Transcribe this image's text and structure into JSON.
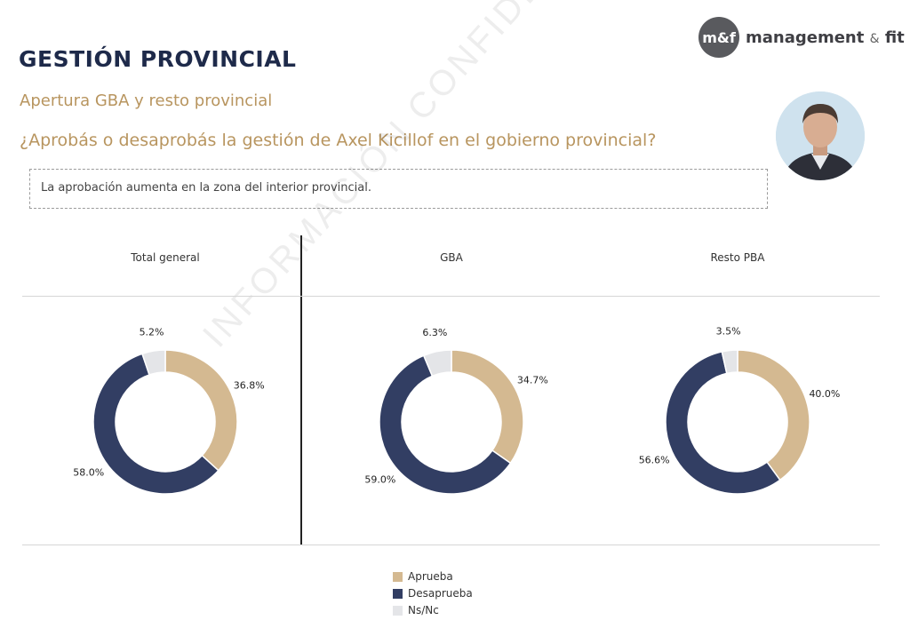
{
  "header": {
    "title": "GESTIÓN PROVINCIAL",
    "subtitle": "Apertura GBA y resto provincial",
    "question": "¿Aprobás o desaprobás la gestión de Axel Kicillof en el gobierno provincial?",
    "note": "La aprobación aumenta en la zona del interior provincial."
  },
  "logo": {
    "mark": "m&f",
    "name": "management",
    "amp": "&",
    "suffix": "fit"
  },
  "watermark": "INFORMACIÓN CONFIDENCIAL",
  "colors": {
    "aprueba": "#d4b991",
    "desaprueba": "#323e63",
    "nsnc": "#e4e5e8"
  },
  "chart_data": [
    {
      "type": "pie",
      "title": "Total general",
      "categories": [
        "Aprueba",
        "Desaprueba",
        "Ns/Nc"
      ],
      "values": [
        36.8,
        58.0,
        5.2
      ],
      "labels": [
        "36.8%",
        "58.0%",
        "5.2%"
      ]
    },
    {
      "type": "pie",
      "title": "GBA",
      "categories": [
        "Aprueba",
        "Desaprueba",
        "Ns/Nc"
      ],
      "values": [
        34.7,
        59.0,
        6.3
      ],
      "labels": [
        "34.7%",
        "59.0%",
        "6.3%"
      ]
    },
    {
      "type": "pie",
      "title": "Resto PBA",
      "categories": [
        "Aprueba",
        "Desaprueba",
        "Ns/Nc"
      ],
      "values": [
        40.0,
        56.6,
        3.5
      ],
      "labels": [
        "40.0%",
        "56.6%",
        "3.5%"
      ]
    }
  ],
  "legend": [
    {
      "label": "Aprueba",
      "color": "#d4b991"
    },
    {
      "label": "Desaprueba",
      "color": "#323e63"
    },
    {
      "label": "Ns/Nc",
      "color": "#e4e5e8"
    }
  ]
}
